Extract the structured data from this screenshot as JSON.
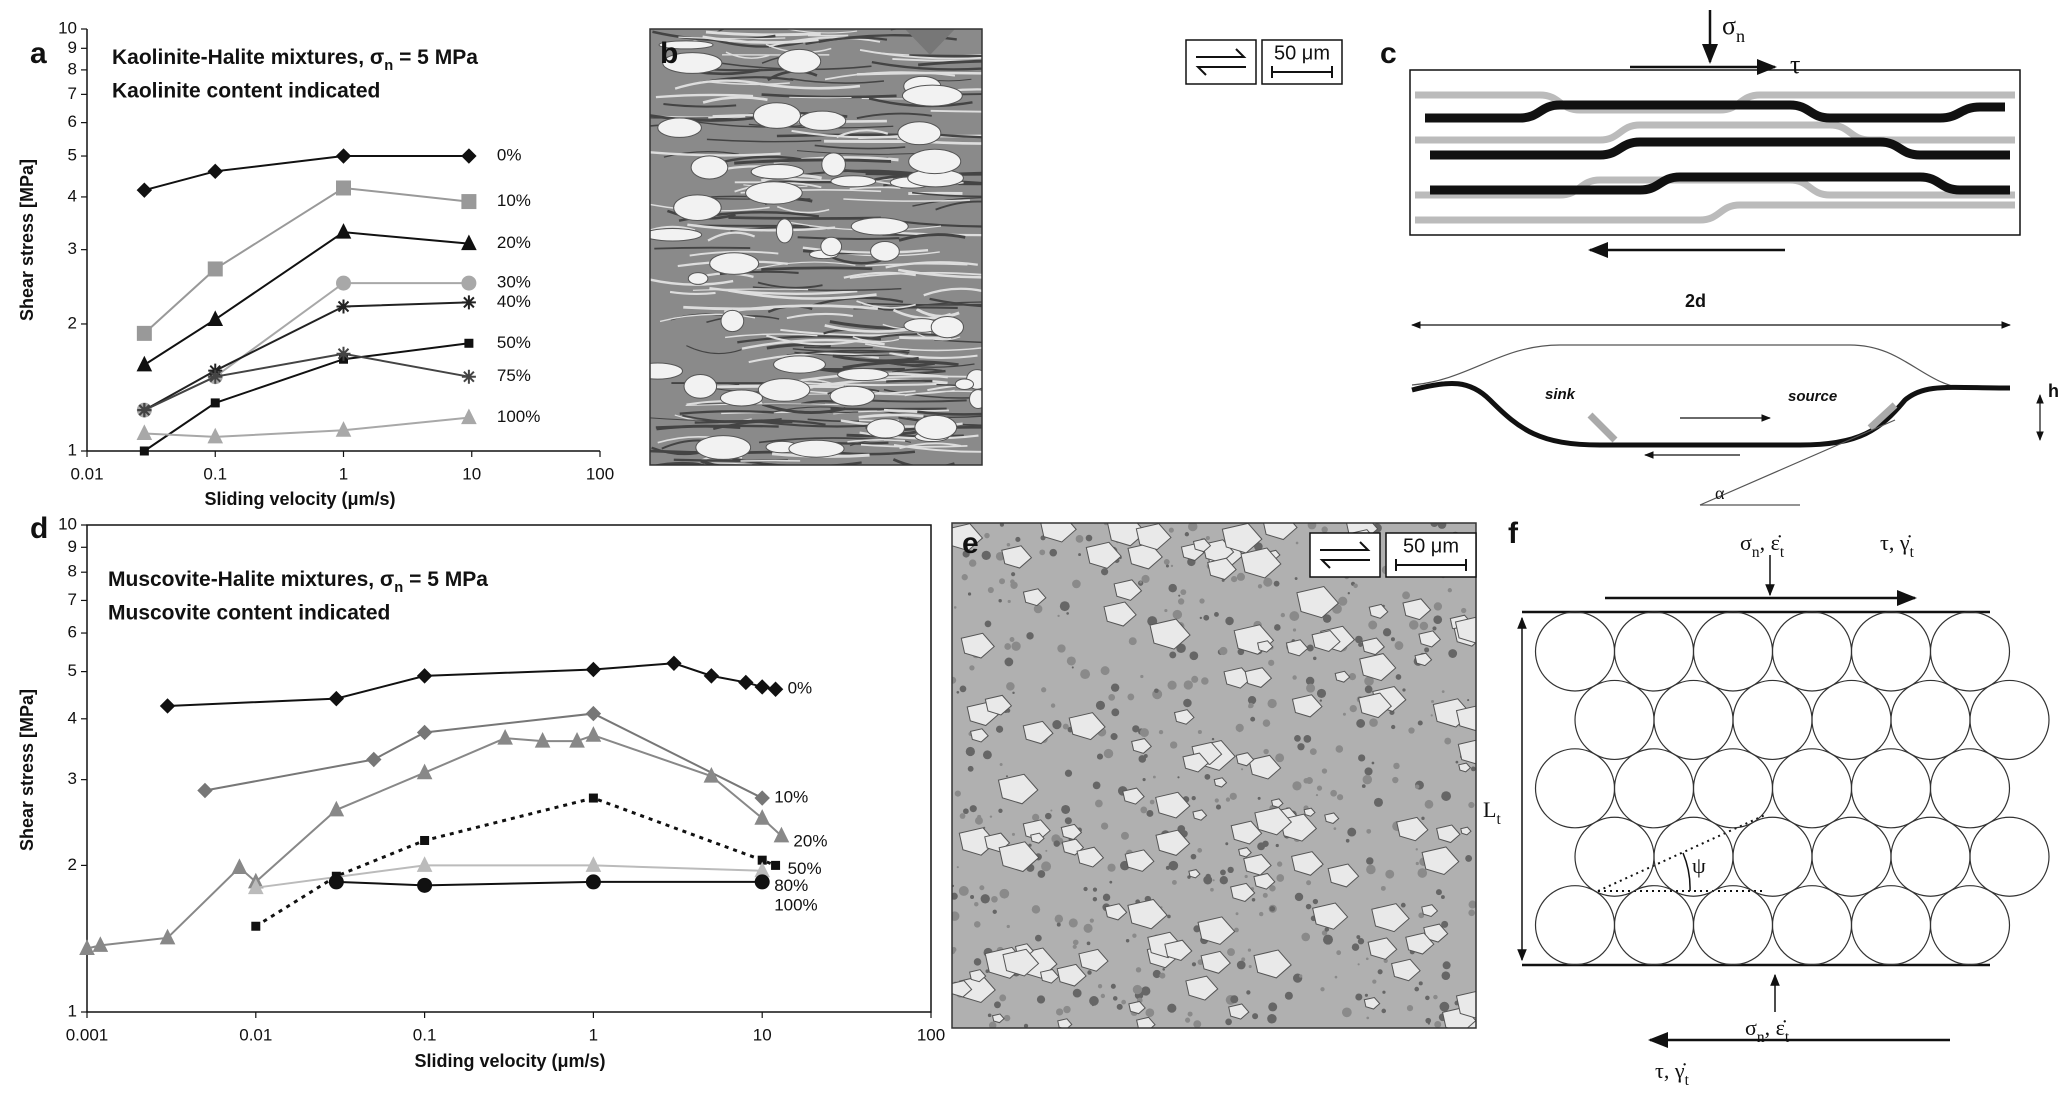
{
  "chart_data": [
    {
      "type": "line",
      "panel": "a",
      "title": [
        "Kaolinite-Halite mixtures, σ",
        "n",
        " = 5 MPa"
      ],
      "subtitle": "Kaolinite content indicated",
      "x_label": "Sliding velocity (μm/s)",
      "y_label": "Shear stress [MPa]",
      "xlog": true,
      "ylog": true,
      "frame": false,
      "xlim": [
        0.01,
        100
      ],
      "ylim": [
        1,
        10
      ],
      "xticks": [
        0.01,
        0.1,
        1,
        10,
        100
      ],
      "yticks": [
        1,
        2,
        3,
        4,
        5,
        6,
        7,
        8,
        9,
        10
      ],
      "x": [
        0.028,
        0.1,
        1,
        9.5
      ],
      "series": [
        {
          "name": "0%",
          "color": "#111111",
          "marker": "diamond",
          "values": [
            4.15,
            4.6,
            5.0,
            5.0
          ]
        },
        {
          "name": "10%",
          "color": "#999999",
          "marker": "square",
          "values": [
            1.9,
            2.7,
            4.2,
            3.9
          ]
        },
        {
          "name": "20%",
          "color": "#111111",
          "marker": "triangle",
          "values": [
            1.6,
            2.05,
            3.3,
            3.1
          ]
        },
        {
          "name": "30%",
          "color": "#a8a8a8",
          "marker": "circle",
          "values": [
            1.25,
            1.5,
            2.5,
            2.5
          ]
        },
        {
          "name": "40%",
          "color": "#222222",
          "marker": "star",
          "values": [
            1.25,
            1.55,
            2.2,
            2.25
          ]
        },
        {
          "name": "50%",
          "color": "#111111",
          "marker": "smallsquare",
          "values": [
            1.0,
            1.3,
            1.65,
            1.8
          ]
        },
        {
          "name": "75%",
          "color": "#444444",
          "marker": "star",
          "values": [
            1.25,
            1.5,
            1.7,
            1.5
          ]
        },
        {
          "name": "100%",
          "color": "#a8a8a8",
          "marker": "triangle",
          "values": [
            1.1,
            1.08,
            1.12,
            1.2
          ]
        }
      ]
    },
    {
      "type": "line",
      "panel": "d",
      "title": [
        "Muscovite-Halite mixtures, σ",
        "n",
        " = 5 MPa"
      ],
      "subtitle": "Muscovite content indicated",
      "x_label": "Sliding velocity (μm/s)",
      "y_label": "Shear stress [MPa]",
      "xlog": true,
      "ylog": true,
      "frame": true,
      "xlim": [
        0.001,
        100
      ],
      "ylim": [
        1,
        10
      ],
      "xticks": [
        0.001,
        0.01,
        0.1,
        1,
        10,
        100
      ],
      "yticks": [
        1,
        2,
        3,
        4,
        5,
        6,
        7,
        8,
        9,
        10
      ],
      "series": [
        {
          "name": "0%",
          "color": "#111111",
          "marker": "diamond",
          "x": [
            0.003,
            0.03,
            0.1,
            1,
            3,
            5,
            8,
            10,
            12
          ],
          "values": [
            4.25,
            4.4,
            4.9,
            5.05,
            5.2,
            4.9,
            4.75,
            4.65,
            4.6
          ]
        },
        {
          "name": "10%",
          "color": "#777777",
          "marker": "diamond",
          "x": [
            0.005,
            0.05,
            0.1,
            1,
            10
          ],
          "values": [
            2.85,
            3.3,
            3.75,
            4.1,
            2.75
          ]
        },
        {
          "name": "20%",
          "color": "#888888",
          "marker": "triangle",
          "x": [
            0.001,
            0.0012,
            0.003,
            0.008,
            0.01,
            0.03,
            0.1,
            0.3,
            0.5,
            0.8,
            1,
            5,
            10,
            13
          ],
          "values": [
            1.35,
            1.37,
            1.42,
            1.98,
            1.85,
            2.6,
            3.1,
            3.65,
            3.6,
            3.6,
            3.7,
            3.05,
            2.5,
            2.3
          ]
        },
        {
          "name": "50%",
          "color": "#111111",
          "marker": "smallsquare",
          "dashed": true,
          "x": [
            0.01,
            0.03,
            0.1,
            1,
            10,
            12
          ],
          "values": [
            1.5,
            1.9,
            2.25,
            2.75,
            2.05,
            2.0
          ]
        },
        {
          "name": "80%",
          "color": "#bbbbbb",
          "marker": "triangle",
          "x": [
            0.01,
            0.1,
            1,
            10
          ],
          "values": [
            1.8,
            2.0,
            2.0,
            1.95
          ]
        },
        {
          "name": "100%",
          "color": "#111111",
          "marker": "circle",
          "x": [
            0.03,
            0.1,
            1,
            10
          ],
          "values": [
            1.85,
            1.82,
            1.85,
            1.85
          ]
        }
      ]
    }
  ],
  "panel_b": {
    "label": "b",
    "scale_bar": "50 μm"
  },
  "panel_c": {
    "label": "c",
    "sigma": [
      "σ",
      "n"
    ],
    "tau": "τ",
    "width": "2d",
    "sink": "sink",
    "source": "source",
    "height": "h",
    "angle": "α"
  },
  "panel_e": {
    "label": "e",
    "scale_bar": "50 μm"
  },
  "panel_f": {
    "label": "f",
    "top_normal": [
      "σ",
      "n",
      ", ε̇",
      "t"
    ],
    "top_shear": [
      "τ, γ̇",
      "t"
    ],
    "bottom_normal": [
      "σ",
      "n",
      ", ε̇",
      "t"
    ],
    "bottom_shear": [
      "τ, γ̇",
      "t"
    ],
    "length": [
      "L",
      "t"
    ],
    "angle": "ψ"
  }
}
